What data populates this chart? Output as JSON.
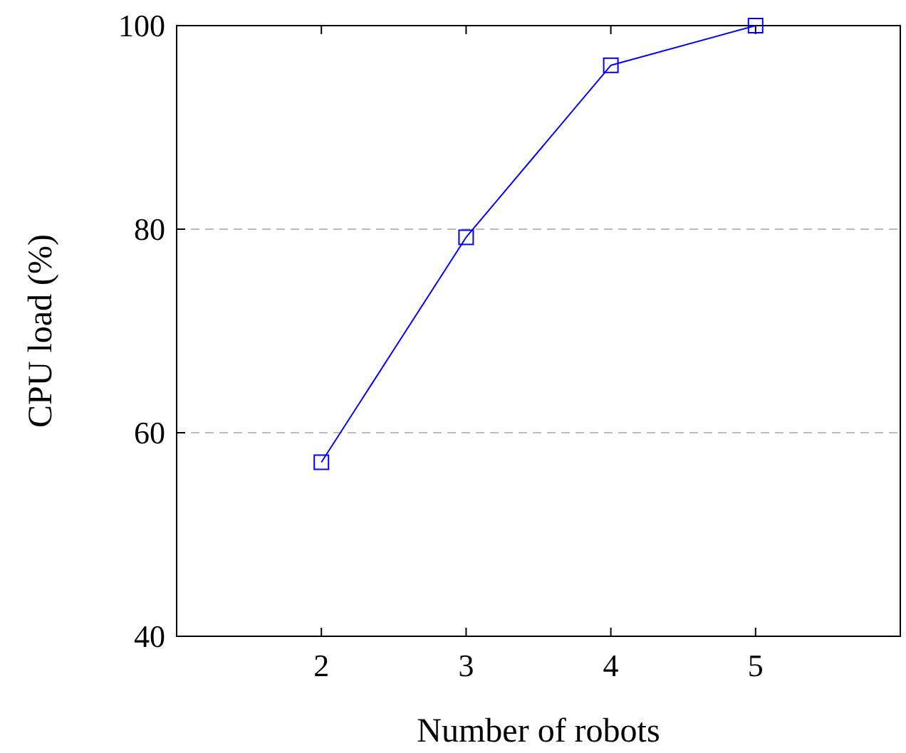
{
  "chart_data": {
    "type": "line",
    "xlabel": "Number of robots",
    "ylabel": "CPU load (%)",
    "x": [
      2,
      3,
      4,
      5
    ],
    "series": [
      {
        "color": "#0000ff",
        "values": [
          57.1,
          79.2,
          96.1,
          100
        ]
      }
    ],
    "xlim": [
      1,
      6
    ],
    "xticks": [
      2,
      3,
      4,
      5
    ],
    "ylim": [
      40,
      100
    ],
    "yticks": [
      40,
      60,
      80,
      100
    ],
    "grid": "y",
    "marker": "square",
    "line_style": "solid"
  }
}
